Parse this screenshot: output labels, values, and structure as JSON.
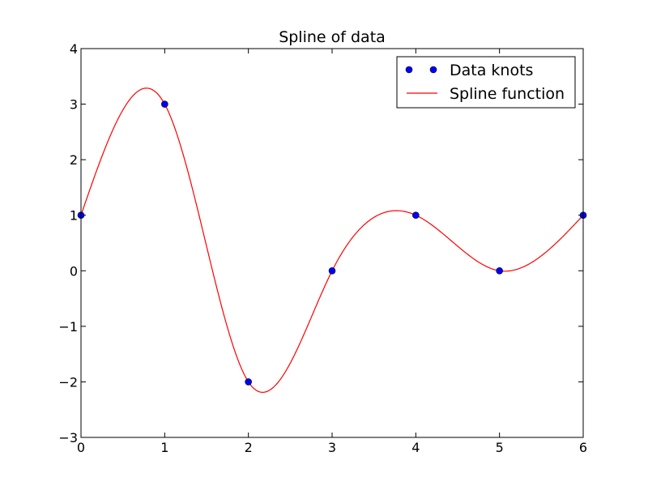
{
  "chart_data": {
    "type": "line",
    "title": "Spline of data",
    "xlabel": "",
    "ylabel": "",
    "xlim": [
      0,
      6
    ],
    "ylim": [
      -3,
      4
    ],
    "x_ticks": [
      0,
      1,
      2,
      3,
      4,
      5,
      6
    ],
    "x_tick_labels": [
      "0",
      "1",
      "2",
      "3",
      "4",
      "5",
      "6"
    ],
    "y_ticks": [
      -3,
      -2,
      -1,
      0,
      1,
      2,
      3,
      4
    ],
    "y_tick_labels": [
      "−3",
      "−2",
      "−1",
      "0",
      "1",
      "2",
      "3",
      "4"
    ],
    "grid": false,
    "legend_position": "top-right",
    "series": [
      {
        "name": "Data knots",
        "kind": "scatter",
        "color": "#0000ff",
        "x": [
          0,
          1,
          2,
          3,
          4,
          5,
          6
        ],
        "y": [
          1,
          3,
          -2,
          0,
          1,
          0,
          1
        ]
      },
      {
        "name": "Spline function",
        "kind": "line",
        "color": "#ff0000",
        "x": [
          0,
          1,
          2,
          3,
          4,
          5,
          6
        ],
        "y": [
          1,
          3,
          -2,
          0,
          1,
          0,
          1
        ]
      }
    ]
  }
}
